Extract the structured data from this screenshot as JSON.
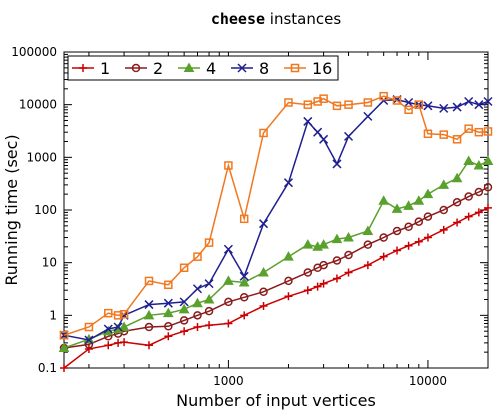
{
  "chart_data": {
    "type": "line",
    "title_code": "cheese",
    "title_rest": " instances",
    "xlabel": "Number of input vertices",
    "ylabel": "Running time (sec)",
    "xscale": "log",
    "yscale": "log",
    "xlim": [
      150,
      20000
    ],
    "ylim": [
      0.1,
      100000
    ],
    "x_ticks": [
      1000,
      10000
    ],
    "x_tick_labels": [
      "1000",
      "10000"
    ],
    "y_ticks": [
      0.1,
      1,
      10,
      100,
      1000,
      10000,
      100000
    ],
    "y_tick_labels": [
      "0.1",
      "1",
      "10",
      "100",
      "1000",
      "10000",
      "100000"
    ],
    "grid": false,
    "legend_position": "top-left",
    "x": [
      150,
      200,
      250,
      280,
      300,
      400,
      500,
      600,
      700,
      800,
      1000,
      1200,
      1500,
      2000,
      2500,
      2800,
      3000,
      3500,
      4000,
      5000,
      6000,
      7000,
      8000,
      9000,
      10000,
      12000,
      14000,
      16000,
      18000,
      20000
    ],
    "series": [
      {
        "name": "1",
        "color": "#cc0000",
        "marker": "plus",
        "values": [
          0.1,
          0.23,
          0.27,
          0.3,
          0.31,
          0.27,
          0.4,
          0.5,
          0.6,
          0.65,
          0.7,
          1.0,
          1.5,
          2.3,
          3.0,
          3.5,
          4.0,
          5.0,
          6.5,
          9.0,
          13,
          17,
          21,
          25,
          30,
          42,
          58,
          75,
          90,
          110
        ]
      },
      {
        "name": "2",
        "color": "#8b1a1a",
        "marker": "circle",
        "values": [
          0.24,
          0.28,
          0.4,
          0.45,
          0.5,
          0.6,
          0.62,
          0.8,
          1.0,
          1.2,
          1.8,
          2.2,
          2.8,
          4.5,
          6.5,
          8.0,
          9.0,
          11,
          14,
          22,
          30,
          40,
          48,
          60,
          75,
          100,
          140,
          180,
          220,
          270
        ]
      },
      {
        "name": "4",
        "color": "#5aa02c",
        "marker": "triangle",
        "values": [
          0.24,
          0.35,
          0.5,
          0.55,
          0.6,
          1.0,
          1.1,
          1.3,
          1.7,
          2.0,
          4.5,
          4.2,
          6.5,
          13,
          22,
          20,
          22,
          28,
          30,
          40,
          150,
          105,
          120,
          150,
          200,
          300,
          400,
          850,
          700,
          850
        ]
      },
      {
        "name": "8",
        "color": "#1f1f8f",
        "marker": "cross",
        "values": [
          0.42,
          0.34,
          0.55,
          0.6,
          1.0,
          1.6,
          1.7,
          1.8,
          3.2,
          4.0,
          18,
          5.5,
          55,
          330,
          4800,
          3000,
          2200,
          750,
          2500,
          6000,
          12000,
          12500,
          11000,
          10000,
          9500,
          8500,
          9000,
          11500,
          10000,
          11500
        ]
      },
      {
        "name": "16",
        "color": "#f07820",
        "marker": "square",
        "values": [
          0.42,
          0.6,
          1.1,
          1.0,
          1.05,
          4.5,
          3.8,
          8.0,
          13,
          24,
          700,
          68,
          2900,
          11000,
          10000,
          11500,
          13000,
          9500,
          10000,
          11000,
          14500,
          12000,
          8000,
          10000,
          2800,
          2700,
          2200,
          3500,
          3000,
          3100
        ]
      }
    ]
  }
}
